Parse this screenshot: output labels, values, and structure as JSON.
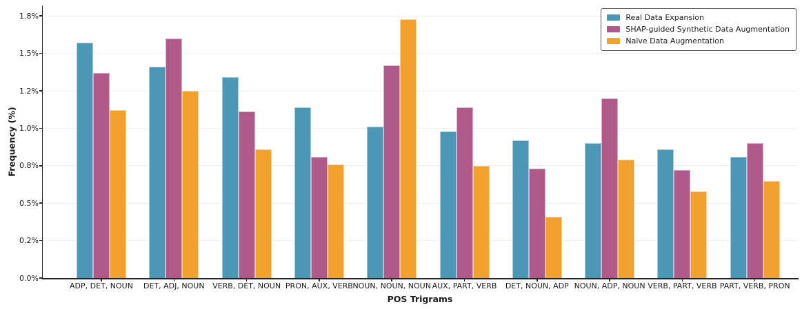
{
  "chart_data": {
    "type": "bar",
    "title": "",
    "xlabel": "POS Trigrams",
    "ylabel": "Frequency (%)",
    "categories": [
      "ADP, DET, NOUN",
      "DET, ADJ, NOUN",
      "VERB, DET, NOUN",
      "PRON, AUX, VERB",
      "NOUN, NOUN, NOUN",
      "AUX, PART, VERB",
      "DET, NOUN, ADP",
      "NOUN, ADP, NOUN",
      "VERB, PART, VERB",
      "PART, VERB, PRON"
    ],
    "series": [
      {
        "name": "Real Data Expansion",
        "color": "#4c97b5",
        "values": [
          1.57,
          1.41,
          1.34,
          1.14,
          1.01,
          0.98,
          0.92,
          0.9,
          0.86,
          0.81
        ]
      },
      {
        "name": "SHAP-guided Synthetic Data Augmentation",
        "color": "#b05a8a",
        "values": [
          1.37,
          1.6,
          1.11,
          0.81,
          1.42,
          1.14,
          0.73,
          1.2,
          0.72,
          0.9
        ]
      },
      {
        "name": "Naïve Data Augmentation",
        "color": "#f2a12d",
        "values": [
          1.12,
          1.25,
          0.86,
          0.76,
          1.73,
          0.75,
          0.41,
          0.79,
          0.58,
          0.65
        ]
      }
    ],
    "ylim": [
      0,
      1.82
    ],
    "ytick_values": [
      0,
      0.25,
      0.5,
      0.75,
      1.0,
      1.25,
      1.5,
      1.75
    ],
    "ytick_labels": [
      "0.0%",
      "0.2%",
      "0.5%",
      "0.8%",
      "1.0%",
      "1.2%",
      "1.5%",
      "1.8%"
    ],
    "grid": "horizontal",
    "legend_position": "upper right",
    "units": "percent frequency"
  }
}
